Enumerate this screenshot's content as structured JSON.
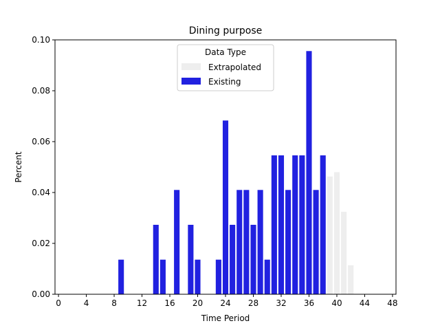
{
  "chart_data": {
    "type": "bar",
    "title": "Dining purpose",
    "xlabel": "Time Period",
    "ylabel": "Percent",
    "xlim": [
      -0.5,
      48.5
    ],
    "ylim": [
      0,
      0.1
    ],
    "xticks": [
      0,
      4,
      8,
      12,
      16,
      20,
      24,
      28,
      32,
      36,
      40,
      44,
      48
    ],
    "xtick_labels": [
      "0",
      "4",
      "8",
      "12",
      "16",
      "20",
      "24",
      "28",
      "32",
      "36",
      "40",
      "44",
      "48"
    ],
    "yticks": [
      0,
      0.02,
      0.04,
      0.06,
      0.08,
      0.1
    ],
    "ytick_labels": [
      "0.00",
      "0.02",
      "0.04",
      "0.06",
      "0.08",
      "0.10"
    ],
    "grid": false,
    "legend": {
      "title": "Data Type",
      "placement": "upper-center",
      "entries": [
        {
          "label": "Extrapolated",
          "color": "#eeeeee"
        },
        {
          "label": "Existing",
          "color": "#2121e0"
        }
      ]
    },
    "series": [
      {
        "name": "Existing",
        "color": "#2121e0",
        "x": [
          9,
          14,
          15,
          17,
          19,
          20,
          23,
          24,
          25,
          26,
          27,
          28,
          29,
          30,
          31,
          32,
          33,
          34,
          35,
          36,
          37,
          38
        ],
        "values": [
          0.0136,
          0.0273,
          0.0136,
          0.041,
          0.0273,
          0.0136,
          0.0136,
          0.0683,
          0.0273,
          0.041,
          0.041,
          0.0273,
          0.041,
          0.0136,
          0.0546,
          0.0546,
          0.041,
          0.0546,
          0.0546,
          0.0956,
          0.041,
          0.0546
        ]
      },
      {
        "name": "Extrapolated",
        "color": "#eeeeee",
        "x": [
          39,
          40,
          41,
          42
        ],
        "values": [
          0.0463,
          0.048,
          0.0324,
          0.0114
        ]
      }
    ]
  }
}
